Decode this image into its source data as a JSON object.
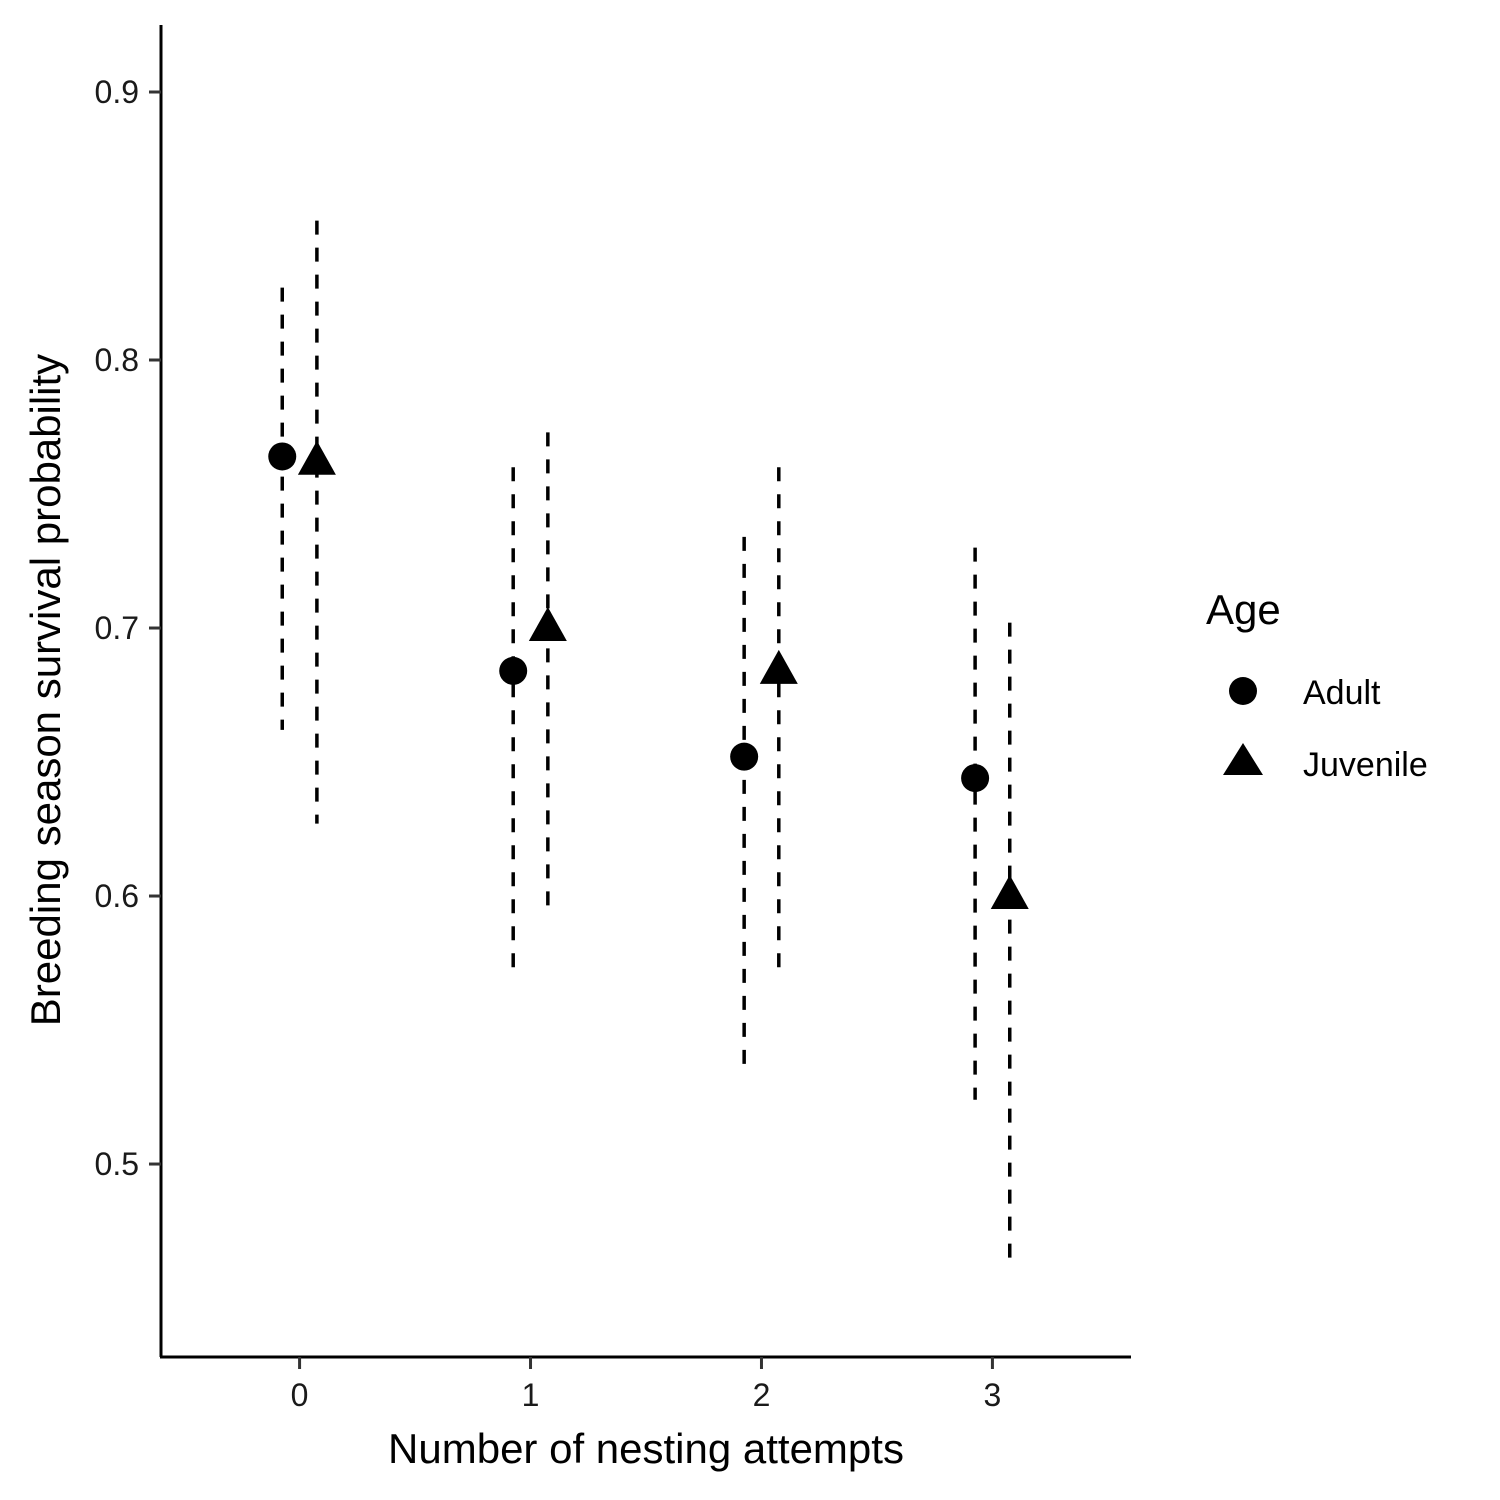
{
  "chart_data": {
    "type": "scatter",
    "title": "",
    "xlabel": "Number of nesting attempts",
    "ylabel": "Breeding season survival probability",
    "categories": [
      "0",
      "1",
      "2",
      "3"
    ],
    "ylim": [
      0.428,
      0.925
    ],
    "y_ticks": [
      0.5,
      0.6,
      0.7,
      0.8,
      0.9
    ],
    "y_tick_labels": [
      "0.5",
      "0.6",
      "0.7",
      "0.8",
      "0.9"
    ],
    "grid": false,
    "legend": {
      "title": "Age",
      "position": "right"
    },
    "error_bars": "dashed vertical intervals",
    "series": [
      {
        "name": "Adult",
        "marker": "circle",
        "color": "#000000",
        "values": [
          0.764,
          0.684,
          0.652,
          0.644
        ],
        "lower": [
          0.662,
          0.571,
          0.533,
          0.524
        ],
        "upper": [
          0.827,
          0.76,
          0.734,
          0.73
        ]
      },
      {
        "name": "Juvenile",
        "marker": "triangle",
        "color": "#000000",
        "values": [
          0.762,
          0.7,
          0.684,
          0.6
        ],
        "lower": [
          0.627,
          0.593,
          0.57,
          0.461
        ],
        "upper": [
          0.852,
          0.773,
          0.76,
          0.702
        ]
      }
    ]
  }
}
